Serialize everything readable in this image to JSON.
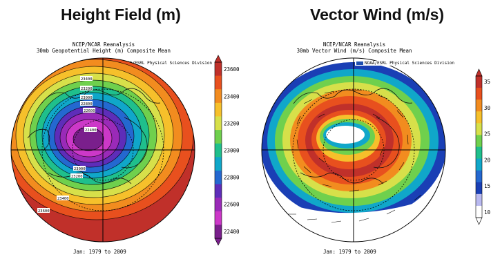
{
  "left_panel": {
    "title": "Height Field (m)",
    "header_line1": "NCEP/NCAR Reanalysis",
    "header_line2": "30mb Geopotential Height (m) Composite Mean",
    "credit": "NOAA/ESRL Physical Sciences Division",
    "footer": "Jan: 1979 to 2009",
    "colorbar_ticks": [
      "23600",
      "23400",
      "23200",
      "23000",
      "22800",
      "22600",
      "22400"
    ],
    "contour_labels": [
      "23400",
      "23200",
      "23000",
      "22600",
      "22800",
      "22400",
      "23000",
      "23200",
      "23400",
      "23600"
    ],
    "colorbar_colors": [
      "#c0302a",
      "#e8501e",
      "#f28c1f",
      "#f6c02b",
      "#d7e04a",
      "#6fd04d",
      "#1fbf8c",
      "#10a7c9",
      "#2468d0",
      "#5e2db9",
      "#9a2ab8",
      "#cc38c8",
      "#7a1f8c"
    ]
  },
  "right_panel": {
    "title": "Vector Wind (m/s)",
    "header_line1": "NCEP/NCAR Reanalysis",
    "header_line2": "30mb Vector Wind (m/s) Composite Mean",
    "credit": "NOAA/ESRL Physical Sciences Division",
    "footer": "Jan: 1979 to 2009",
    "colorbar_ticks": [
      "35",
      "30",
      "25",
      "20",
      "15",
      "10"
    ],
    "colorbar_colors": [
      "#c0302a",
      "#e8501e",
      "#f28c1f",
      "#f6c02b",
      "#d7e04a",
      "#6fd04d",
      "#1fbf8c",
      "#10a7c9",
      "#2468d0",
      "#1a3fb5",
      "#b9b9f0",
      "#ffffff"
    ]
  }
}
